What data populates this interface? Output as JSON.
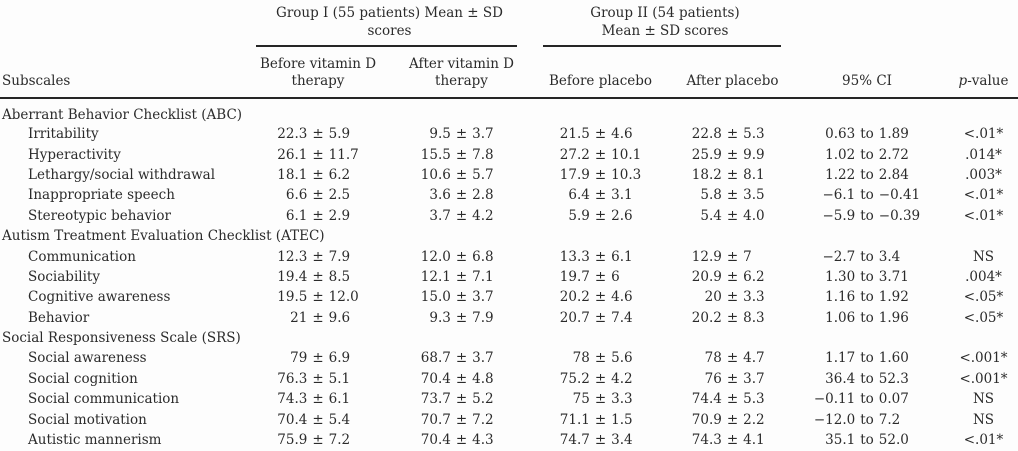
{
  "colors": {
    "background": "#fdfdfd",
    "text": "#2b2b2b",
    "rule": "#262626"
  },
  "header": {
    "subscales": "Subscales",
    "group1": {
      "line1": "Group I (55 patients) Mean ± SD",
      "line2": "scores",
      "col_before": "Before vitamin D therapy",
      "col_after": "After vitamin D therapy"
    },
    "group2": {
      "line1": "Group II (54 patients)",
      "line2": "Mean ± SD scores",
      "col_before": "Before placebo",
      "col_after": "After placebo"
    },
    "ci": "95% CI",
    "p_italic": "p",
    "p_rest": "-value"
  },
  "sections": [
    {
      "title": "Aberrant Behavior Checklist (ABC)",
      "rows": [
        {
          "label": "Irritability",
          "g1_before": {
            "m": "22.3",
            "sd": "5.9"
          },
          "g1_after": {
            "m": "9.5",
            "sd": "3.7"
          },
          "g2_before": {
            "m": "21.5",
            "sd": "4.6"
          },
          "g2_after": {
            "m": "22.8",
            "sd": "5.3"
          },
          "ci": {
            "lo": "0.63",
            "hi": "1.89"
          },
          "p": "<.01*"
        },
        {
          "label": "Hyperactivity",
          "g1_before": {
            "m": "26.1",
            "sd": "11.7"
          },
          "g1_after": {
            "m": "15.5",
            "sd": "7.8"
          },
          "g2_before": {
            "m": "27.2",
            "sd": "10.1"
          },
          "g2_after": {
            "m": "25.9",
            "sd": "9.9"
          },
          "ci": {
            "lo": "1.02",
            "hi": "2.72"
          },
          "p": ".014*"
        },
        {
          "label": "Lethargy/social withdrawal",
          "g1_before": {
            "m": "18.1",
            "sd": "6.2"
          },
          "g1_after": {
            "m": "10.6",
            "sd": "5.7"
          },
          "g2_before": {
            "m": "17.9",
            "sd": "10.3"
          },
          "g2_after": {
            "m": "18.2",
            "sd": "8.1"
          },
          "ci": {
            "lo": "1.22",
            "hi": "2.84"
          },
          "p": ".003*"
        },
        {
          "label": "Inappropriate speech",
          "g1_before": {
            "m": "6.6",
            "sd": "2.5"
          },
          "g1_after": {
            "m": "3.6",
            "sd": "2.8"
          },
          "g2_before": {
            "m": "6.4",
            "sd": "3.1"
          },
          "g2_after": {
            "m": "5.8",
            "sd": "3.5"
          },
          "ci": {
            "lo": "−6.1",
            "hi": "−0.41"
          },
          "p": "<.01*"
        },
        {
          "label": "Stereotypic behavior",
          "g1_before": {
            "m": "6.1",
            "sd": "2.9"
          },
          "g1_after": {
            "m": "3.7",
            "sd": "4.2"
          },
          "g2_before": {
            "m": "5.9",
            "sd": "2.6"
          },
          "g2_after": {
            "m": "5.4",
            "sd": "4.0"
          },
          "ci": {
            "lo": "−5.9",
            "hi": "−0.39"
          },
          "p": "<.01*"
        }
      ]
    },
    {
      "title": "Autism Treatment Evaluation Checklist (ATEC)",
      "rows": [
        {
          "label": "Communication",
          "g1_before": {
            "m": "12.3",
            "sd": "7.9"
          },
          "g1_after": {
            "m": "12.0",
            "sd": "6.8"
          },
          "g2_before": {
            "m": "13.3",
            "sd": "6.1"
          },
          "g2_after": {
            "m": "12.9",
            "sd": "7"
          },
          "ci": {
            "lo": "−2.7",
            "hi": "3.4"
          },
          "p": "NS"
        },
        {
          "label": "Sociability",
          "g1_before": {
            "m": "19.4",
            "sd": "8.5"
          },
          "g1_after": {
            "m": "12.1",
            "sd": "7.1"
          },
          "g2_before": {
            "m": "19.7",
            "sd": "6"
          },
          "g2_after": {
            "m": "20.9",
            "sd": "6.2"
          },
          "ci": {
            "lo": "1.30",
            "hi": "3.71"
          },
          "p": ".004*"
        },
        {
          "label": "Cognitive awareness",
          "g1_before": {
            "m": "19.5",
            "sd": "12.0"
          },
          "g1_after": {
            "m": "15.0",
            "sd": "3.7"
          },
          "g2_before": {
            "m": "20.2",
            "sd": "4.6"
          },
          "g2_after": {
            "m": "20",
            "sd": "3.3"
          },
          "ci": {
            "lo": "1.16",
            "hi": "1.92"
          },
          "p": "<.05*"
        },
        {
          "label": "Behavior",
          "g1_before": {
            "m": "21",
            "sd": "9.6"
          },
          "g1_after": {
            "m": "9.3",
            "sd": "7.9"
          },
          "g2_before": {
            "m": "20.7",
            "sd": "7.4"
          },
          "g2_after": {
            "m": "20.2",
            "sd": "8.3"
          },
          "ci": {
            "lo": "1.06",
            "hi": "1.96"
          },
          "p": "<.05*"
        }
      ]
    },
    {
      "title": "Social Responsiveness Scale (SRS)",
      "rows": [
        {
          "label": "Social awareness",
          "g1_before": {
            "m": "79",
            "sd": "6.9"
          },
          "g1_after": {
            "m": "68.7",
            "sd": "3.7"
          },
          "g2_before": {
            "m": "78",
            "sd": "5.6"
          },
          "g2_after": {
            "m": "78",
            "sd": "4.7"
          },
          "ci": {
            "lo": "1.17",
            "hi": "1.60"
          },
          "p": "<.001*"
        },
        {
          "label": "Social cognition",
          "g1_before": {
            "m": "76.3",
            "sd": "5.1"
          },
          "g1_after": {
            "m": "70.4",
            "sd": "4.8"
          },
          "g2_before": {
            "m": "75.2",
            "sd": "4.2"
          },
          "g2_after": {
            "m": "76",
            "sd": "3.7"
          },
          "ci": {
            "lo": "36.4",
            "hi": "52.3"
          },
          "p": "<.001*"
        },
        {
          "label": "Social communication",
          "g1_before": {
            "m": "74.3",
            "sd": "6.1"
          },
          "g1_after": {
            "m": "73.7",
            "sd": "5.2"
          },
          "g2_before": {
            "m": "75",
            "sd": "3.3"
          },
          "g2_after": {
            "m": "74.4",
            "sd": "5.3"
          },
          "ci": {
            "lo": "−0.11",
            "hi": "0.07"
          },
          "p": "NS"
        },
        {
          "label": "Social motivation",
          "g1_before": {
            "m": "70.4",
            "sd": "5.4"
          },
          "g1_after": {
            "m": "70.7",
            "sd": "7.2"
          },
          "g2_before": {
            "m": "71.1",
            "sd": "1.5"
          },
          "g2_after": {
            "m": "70.9",
            "sd": "2.2"
          },
          "ci": {
            "lo": "−12.0",
            "hi": "7.2"
          },
          "p": "NS"
        },
        {
          "label": "Autistic mannerism",
          "g1_before": {
            "m": "75.9",
            "sd": "7.2"
          },
          "g1_after": {
            "m": "70.4",
            "sd": "4.3"
          },
          "g2_before": {
            "m": "74.7",
            "sd": "3.4"
          },
          "g2_after": {
            "m": "74.3",
            "sd": "4.1"
          },
          "ci": {
            "lo": "35.1",
            "hi": "52.0"
          },
          "p": "<.01*"
        }
      ]
    }
  ],
  "separators": {
    "mean_sd": "±",
    "ci_range": "to"
  }
}
